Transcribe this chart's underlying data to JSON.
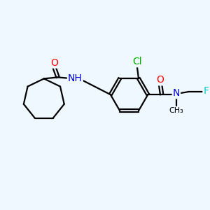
{
  "bg_color": "#f0f8ff",
  "atom_colors": {
    "O": "#ff0000",
    "N": "#0000cc",
    "Cl": "#00aa00",
    "F": "#00cccc",
    "C": "#000000"
  },
  "font_size_atom": 10,
  "lw": 1.6
}
